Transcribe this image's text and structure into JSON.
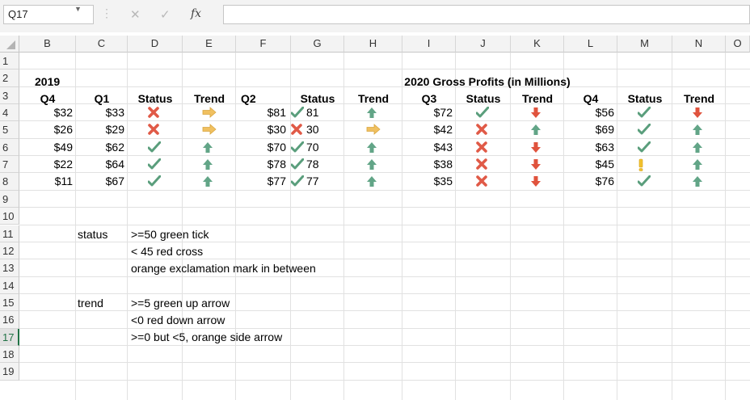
{
  "formula_bar": {
    "name_box": "Q17",
    "fx_label": "fx",
    "formula": ""
  },
  "columns": [
    "B",
    "C",
    "D",
    "E",
    "F",
    "G",
    "H",
    "I",
    "J",
    "K",
    "L",
    "M",
    "N",
    "O"
  ],
  "rows": [
    "1",
    "2",
    "3",
    "4",
    "5",
    "6",
    "7",
    "8",
    "9",
    "10",
    "11",
    "12",
    "13",
    "14",
    "15",
    "16",
    "17",
    "18",
    "19"
  ],
  "selected_row": "17",
  "title": "2020 Gross Profits (in Millions)",
  "year_label": "2019",
  "headers": {
    "q4_2019": "Q4",
    "q1": "Q1",
    "status1": "Status",
    "trend1": "Trend",
    "q2": "Q2",
    "status2": "Status",
    "trend2": "Trend",
    "q3": "Q3",
    "status3": "Status",
    "trend3": "Trend",
    "q4": "Q4",
    "status4": "Status",
    "trend4": "Trend"
  },
  "data": [
    {
      "q4_2019": "$32",
      "q1": "$33",
      "st1": "cross",
      "tr1": "side",
      "q2": "$81",
      "st2": "tick",
      "q2v": "81",
      "tr2": "up",
      "q3": "$72",
      "st3": "tick",
      "tr3": "down",
      "q4": "$56",
      "st4": "tick",
      "tr4": "down"
    },
    {
      "q4_2019": "$26",
      "q1": "$29",
      "st1": "cross",
      "tr1": "side",
      "q2": "$30",
      "st2": "cross",
      "q2v": "30",
      "tr2": "side",
      "q3": "$42",
      "st3": "cross",
      "tr3": "up",
      "q4": "$69",
      "st4": "tick",
      "tr4": "up"
    },
    {
      "q4_2019": "$49",
      "q1": "$62",
      "st1": "tick",
      "tr1": "up",
      "q2": "$70",
      "st2": "tick",
      "q2v": "70",
      "tr2": "up",
      "q3": "$43",
      "st3": "cross",
      "tr3": "down",
      "q4": "$63",
      "st4": "tick",
      "tr4": "up"
    },
    {
      "q4_2019": "$22",
      "q1": "$64",
      "st1": "tick",
      "tr1": "up",
      "q2": "$78",
      "st2": "tick",
      "q2v": "78",
      "tr2": "up",
      "q3": "$38",
      "st3": "cross",
      "tr3": "down",
      "q4": "$45",
      "st4": "excl",
      "tr4": "up"
    },
    {
      "q4_2019": "$11",
      "q1": "$67",
      "st1": "tick",
      "tr1": "up",
      "q2": "$77",
      "st2": "tick",
      "q2v": "77",
      "tr2": "up",
      "q3": "$35",
      "st3": "cross",
      "tr3": "down",
      "q4": "$76",
      "st4": "tick",
      "tr4": "up"
    }
  ],
  "notes": {
    "status_label": "status",
    "status_lines": [
      ">=50 green tick",
      "< 45 red cross",
      "orange exclamation mark in between"
    ],
    "trend_label": "trend",
    "trend_lines": [
      ">=5 green up arrow",
      "<0 red down arrow",
      ">=0 but <5, orange side arrow"
    ]
  },
  "colors": {
    "tick": "#5a9e7c",
    "cross": "#e05a47",
    "up": "#62a587",
    "down": "#e0533d",
    "side": "#f0c060",
    "excl": "#f2c230"
  }
}
